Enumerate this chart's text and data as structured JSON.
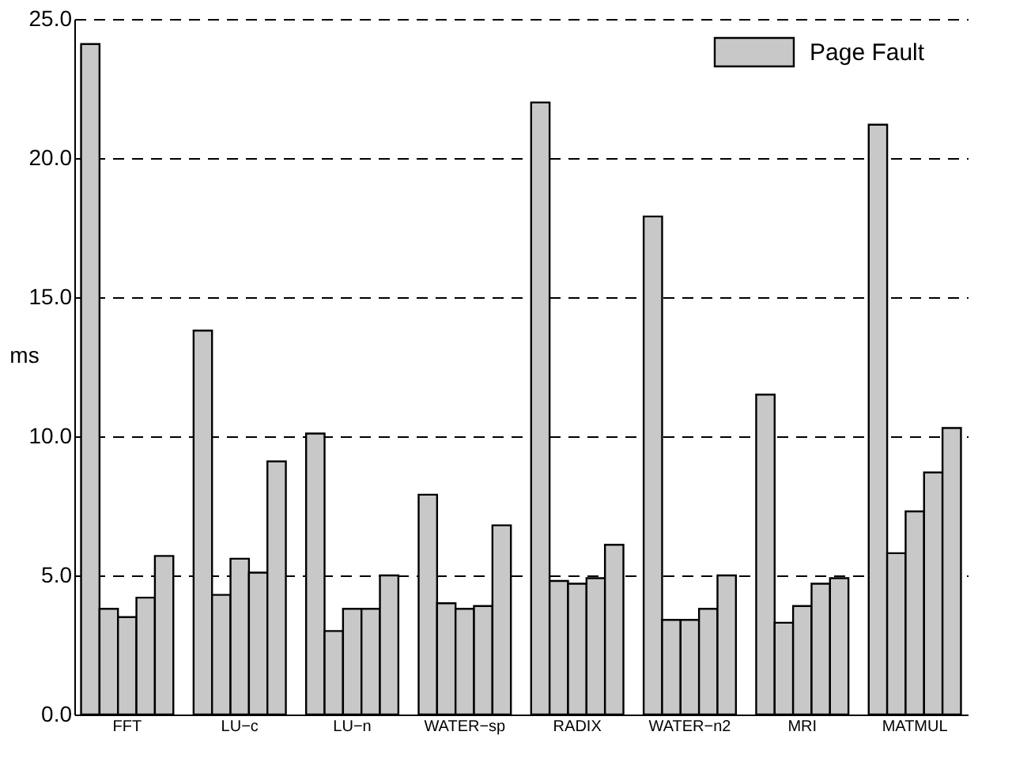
{
  "chart_data": {
    "type": "bar",
    "ylabel": "ms",
    "categories": [
      "FFT",
      "LU−c",
      "LU−n",
      "WATER−sp",
      "RADIX",
      "WATER−n2",
      "MRI",
      "MATMUL"
    ],
    "series": [
      {
        "name": "Page Fault",
        "color": "#c8c8c8",
        "values": [
          24.1,
          13.8,
          10.1,
          7.9,
          22.0,
          17.9,
          11.5,
          21.2
        ]
      },
      {
        "color": "#c8c8c8",
        "values": [
          3.8,
          4.3,
          3.0,
          4.0,
          4.8,
          3.4,
          3.3,
          5.8
        ]
      },
      {
        "color": "#c8c8c8",
        "values": [
          3.5,
          5.6,
          3.8,
          3.8,
          4.7,
          3.4,
          3.9,
          7.3
        ]
      },
      {
        "color": "#c8c8c8",
        "values": [
          4.2,
          5.1,
          3.8,
          3.9,
          4.9,
          3.8,
          4.7,
          8.7
        ]
      },
      {
        "color": "#c8c8c8",
        "values": [
          5.7,
          9.1,
          5.0,
          6.8,
          6.1,
          5.0,
          4.9,
          10.3
        ]
      }
    ],
    "ylim": [
      0,
      25
    ],
    "yticks": [
      {
        "value": 0,
        "label": "0.0"
      },
      {
        "value": 5,
        "label": "5.0"
      },
      {
        "value": 10,
        "label": "10.0"
      },
      {
        "value": 15,
        "label": "15.0"
      },
      {
        "value": 20,
        "label": "20.0"
      },
      {
        "value": 25,
        "label": "25.0"
      }
    ],
    "grid": "y",
    "legend": "top right"
  }
}
